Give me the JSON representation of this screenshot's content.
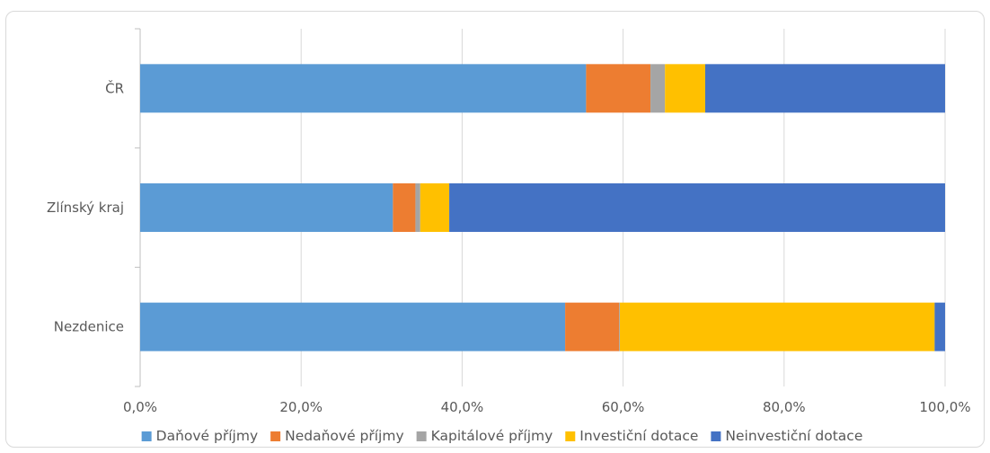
{
  "chart_data": {
    "type": "bar",
    "orientation": "horizontal",
    "stacked": "100%",
    "title": "",
    "xlabel": "",
    "ylabel": "",
    "categories": [
      "ČR",
      "Zlínský kraj",
      "Nezdenice"
    ],
    "xlim": [
      0,
      100
    ],
    "x_ticks": [
      "0,0%",
      "20,0%",
      "40,0%",
      "60,0%",
      "80,0%",
      "100,0%"
    ],
    "grid": "vertical",
    "legend_position": "bottom",
    "series": [
      {
        "name": "Daňové příjmy",
        "color": "#5b9bd5",
        "values": [
          55.4,
          31.4,
          52.8
        ]
      },
      {
        "name": "Nedaňové příjmy",
        "color": "#ed7d31",
        "values": [
          8.0,
          2.8,
          6.7
        ]
      },
      {
        "name": "Kapitálové příjmy",
        "color": "#a5a5a5",
        "values": [
          1.8,
          0.6,
          0.1
        ]
      },
      {
        "name": "Investiční dotace",
        "color": "#ffc000",
        "values": [
          5.0,
          3.6,
          39.1
        ]
      },
      {
        "name": "Neinvestiční dotace",
        "color": "#4472c4",
        "values": [
          29.8,
          61.6,
          1.3
        ]
      }
    ]
  }
}
